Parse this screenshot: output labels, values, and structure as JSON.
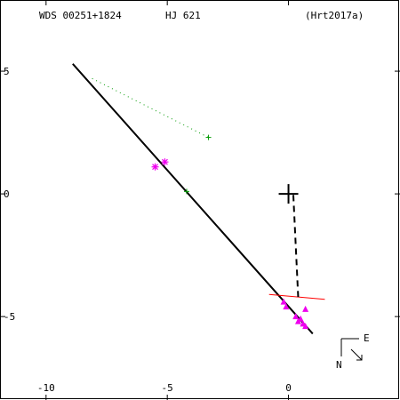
{
  "header": {
    "wds_id": "WDS 00251+1824",
    "discoverer": "HJ  621",
    "reference": "(Hrt2017a)"
  },
  "compass": {
    "east_label": "E",
    "north_label": "N"
  },
  "chart_data": {
    "type": "scatter",
    "title": "",
    "xlabel": "",
    "ylabel": "",
    "xlim": [
      -11.9,
      4.6
    ],
    "ylim": [
      -8.4,
      7.9
    ],
    "x_ticks": [
      {
        "value": -10,
        "label": "-10"
      },
      {
        "value": -5,
        "label": "-5"
      },
      {
        "value": 0,
        "label": "0"
      }
    ],
    "y_ticks": [
      {
        "value": 5,
        "label": "5"
      },
      {
        "value": 0,
        "label": "0"
      },
      {
        "value": -5,
        "label": "-5"
      }
    ],
    "primary_marker": {
      "x": 0,
      "y": 0
    },
    "fitted_orbit_line": {
      "x1": -8.9,
      "y1": 5.3,
      "x2": 1.0,
      "y2": -5.7
    },
    "node_line": {
      "x1": 0.2,
      "y1": -0.05,
      "x2": 0.4,
      "y2": -4.2
    },
    "residual_line": {
      "x1": -0.8,
      "y1": -4.1,
      "x2": 1.5,
      "y2": -4.3
    },
    "green_dotted_line": {
      "x1": -8.1,
      "y1": 4.7,
      "x2": -3.3,
      "y2": 2.3
    },
    "series": [
      {
        "marker": "plus",
        "color": "#009900",
        "points": [
          {
            "x": -3.3,
            "y": 2.3
          },
          {
            "x": -4.2,
            "y": 0.1
          }
        ]
      },
      {
        "marker": "asterisk",
        "color": "#ee00ee",
        "points": [
          {
            "x": -5.5,
            "y": 1.1
          },
          {
            "x": -5.1,
            "y": 1.3
          }
        ]
      },
      {
        "marker": "triangle",
        "color": "#ee00ee",
        "points": [
          {
            "x": -0.2,
            "y": -4.4
          },
          {
            "x": -0.1,
            "y": -4.6
          },
          {
            "x": 0.3,
            "y": -5.0
          },
          {
            "x": 0.4,
            "y": -5.2
          },
          {
            "x": 0.6,
            "y": -5.3
          },
          {
            "x": 0.7,
            "y": -5.4
          },
          {
            "x": 0.7,
            "y": -4.7
          },
          {
            "x": 0.5,
            "y": -5.1
          }
        ]
      }
    ]
  }
}
